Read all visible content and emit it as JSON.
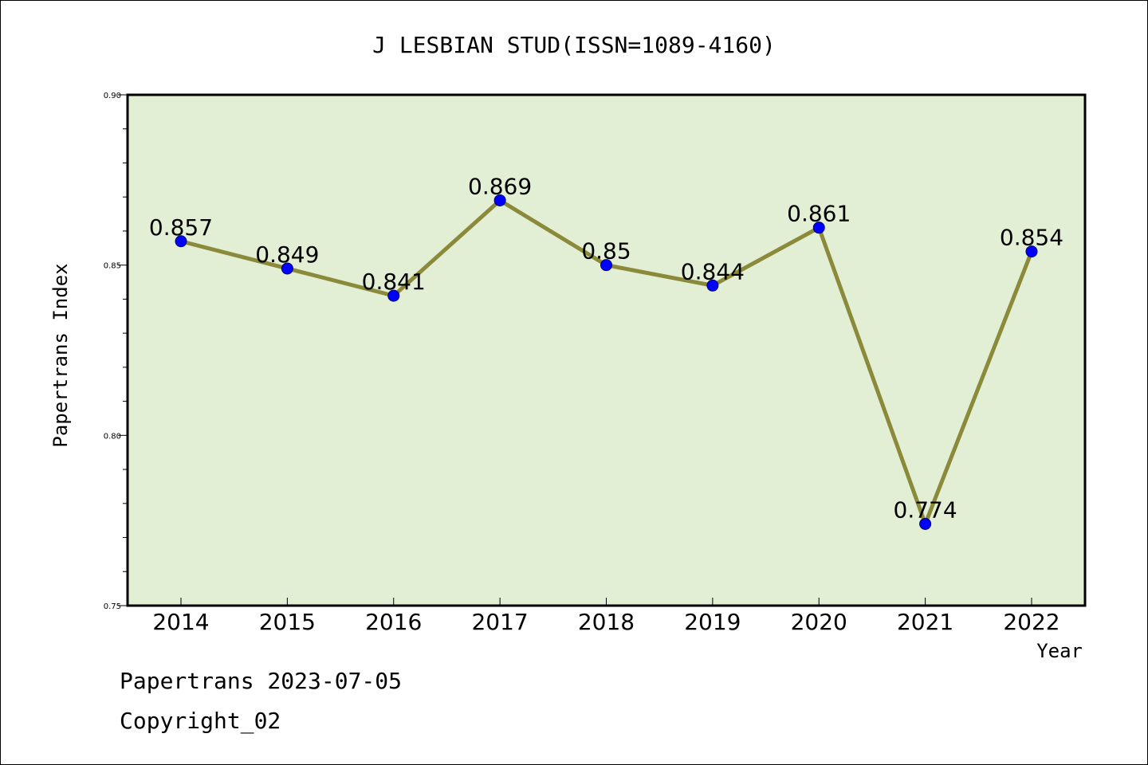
{
  "chart_data": {
    "type": "line",
    "title": "J LESBIAN STUD(ISSN=1089-4160)",
    "xlabel": "Year",
    "ylabel": "Papertrans Index",
    "categories": [
      "2014",
      "2015",
      "2016",
      "2017",
      "2018",
      "2019",
      "2020",
      "2021",
      "2022"
    ],
    "series": [
      {
        "values": [
          0.857,
          0.849,
          0.841,
          0.869,
          0.85,
          0.844,
          0.861,
          0.774,
          0.854
        ],
        "labels": [
          "0.857",
          "0.849",
          "0.841",
          "0.869",
          "0.85",
          "0.844",
          "0.861",
          "0.774",
          "0.854"
        ],
        "line_color": "#8b8a3a",
        "marker_color": "#0000ff"
      }
    ],
    "ylim": [
      0.75,
      0.9
    ],
    "yticks": [
      "0.75",
      "0.80",
      "0.85",
      "0.90"
    ],
    "grid": false,
    "plot_background": "#e2efd5"
  },
  "footer": {
    "date_line": "Papertrans 2023-07-05",
    "copyright_line": "Copyright_02"
  }
}
